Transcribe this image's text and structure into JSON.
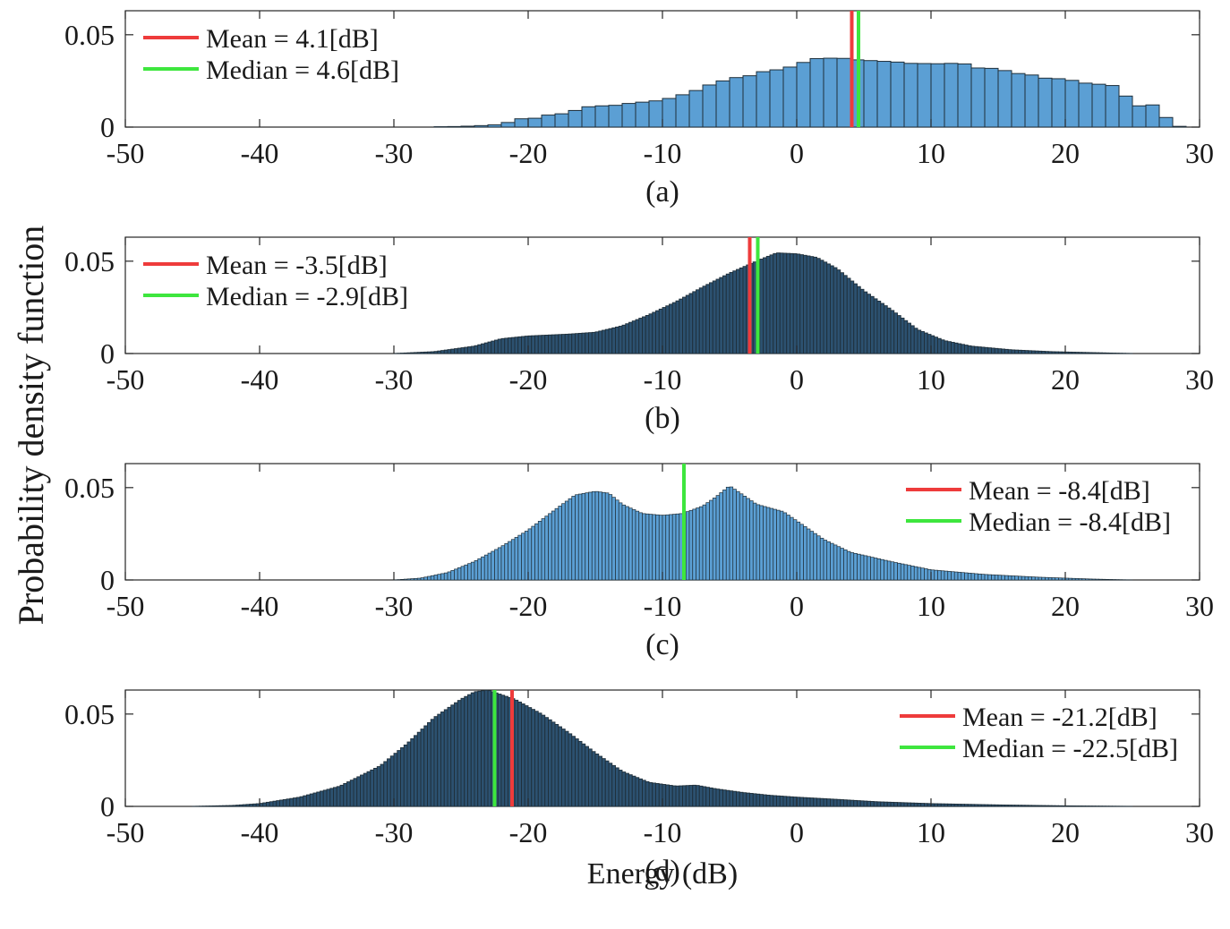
{
  "figure": {
    "ylabel": "Probability density function",
    "xlabel": "Energy (dB)",
    "colors": {
      "bar_fill": "#5b9fd4",
      "bar_edge": "#1f2f3a",
      "mean": "#ee3b3b",
      "median": "#3ee63e"
    }
  },
  "chart_data": [
    {
      "type": "bar",
      "panel_label": "(a)",
      "xlim": [
        -50,
        30
      ],
      "ylim": [
        0,
        0.063
      ],
      "xticks": [
        -50,
        -40,
        -30,
        -20,
        -10,
        0,
        10,
        20,
        30
      ],
      "yticks": [
        0,
        0.05
      ],
      "ytick_labels": [
        "0",
        "0.05"
      ],
      "legend_position": "top-left",
      "bin_width": 1,
      "bin_start": -27,
      "values": [
        0.0002,
        0.0003,
        0.0005,
        0.0008,
        0.0012,
        0.0025,
        0.0045,
        0.0048,
        0.0065,
        0.0072,
        0.009,
        0.011,
        0.0115,
        0.0118,
        0.0128,
        0.0135,
        0.0142,
        0.0155,
        0.0175,
        0.0198,
        0.0228,
        0.025,
        0.0268,
        0.0278,
        0.03,
        0.031,
        0.0325,
        0.035,
        0.0371,
        0.0373,
        0.0372,
        0.0364,
        0.036,
        0.0356,
        0.0352,
        0.0345,
        0.0344,
        0.0343,
        0.0345,
        0.0342,
        0.032,
        0.0318,
        0.0306,
        0.029,
        0.0282,
        0.0265,
        0.0262,
        0.0253,
        0.0238,
        0.0232,
        0.0225,
        0.0168,
        0.0115,
        0.012,
        0.0052,
        0.0004
      ],
      "mean": {
        "value": 4.1,
        "label": "Mean = 4.1[dB]"
      },
      "median": {
        "value": 4.6,
        "label": "Median = 4.6[dB]"
      }
    },
    {
      "type": "bar",
      "panel_label": "(b)",
      "xlim": [
        -50,
        30
      ],
      "ylim": [
        0,
        0.063
      ],
      "xticks": [
        -50,
        -40,
        -30,
        -20,
        -10,
        0,
        10,
        20,
        30
      ],
      "yticks": [
        0,
        0.05
      ],
      "ytick_labels": [
        "0",
        "0.05"
      ],
      "legend_position": "top-left",
      "x": [
        -30,
        -27,
        -24,
        -22,
        -20,
        -17,
        -15,
        -13,
        -11,
        -9,
        -7,
        -5,
        -3,
        -1.5,
        0,
        1.5,
        3,
        5,
        7,
        9,
        11,
        13,
        16,
        19,
        22,
        25
      ],
      "y": [
        0,
        0.001,
        0.004,
        0.008,
        0.0095,
        0.0105,
        0.0115,
        0.015,
        0.021,
        0.028,
        0.036,
        0.0435,
        0.05,
        0.0545,
        0.054,
        0.052,
        0.046,
        0.034,
        0.024,
        0.013,
        0.007,
        0.004,
        0.002,
        0.001,
        0.0005,
        0
      ],
      "mean": {
        "value": -3.5,
        "label": "Mean = -3.5[dB]"
      },
      "median": {
        "value": -2.9,
        "label": "Median = -2.9[dB]"
      }
    },
    {
      "type": "bar",
      "panel_label": "(c)",
      "xlim": [
        -50,
        30
      ],
      "ylim": [
        0,
        0.063
      ],
      "xticks": [
        -50,
        -40,
        -30,
        -20,
        -10,
        0,
        10,
        20,
        30
      ],
      "yticks": [
        0,
        0.05
      ],
      "ytick_labels": [
        "0",
        "0.05"
      ],
      "legend_position": "top-right",
      "x": [
        -30,
        -28,
        -26,
        -24,
        -22,
        -20,
        -18,
        -16.5,
        -15,
        -14,
        -13,
        -11.5,
        -10,
        -8.5,
        -7,
        -6,
        -5,
        -4,
        -3,
        -1,
        0,
        2,
        4,
        7,
        10,
        14,
        18,
        22,
        25
      ],
      "y": [
        0,
        0.001,
        0.004,
        0.01,
        0.018,
        0.027,
        0.038,
        0.046,
        0.048,
        0.047,
        0.041,
        0.036,
        0.035,
        0.036,
        0.04,
        0.045,
        0.051,
        0.046,
        0.041,
        0.037,
        0.032,
        0.022,
        0.015,
        0.01,
        0.0055,
        0.003,
        0.0015,
        0.0005,
        0
      ],
      "mean": {
        "value": -8.4,
        "label": "Mean = -8.4[dB]"
      },
      "median": {
        "value": -8.4,
        "label": "Median = -8.4[dB]"
      }
    },
    {
      "type": "bar",
      "panel_label": "(d)",
      "xlim": [
        -50,
        30
      ],
      "ylim": [
        0,
        0.063
      ],
      "xticks": [
        -50,
        -40,
        -30,
        -20,
        -10,
        0,
        10,
        20,
        30
      ],
      "yticks": [
        0,
        0.05
      ],
      "ytick_labels": [
        "0",
        "0.05"
      ],
      "legend_position": "top-right",
      "x": [
        -45,
        -42,
        -40,
        -37,
        -34,
        -31,
        -29,
        -27,
        -25,
        -24,
        -23,
        -21,
        -19,
        -17,
        -15,
        -13,
        -11,
        -9,
        -7.5,
        -6,
        -4,
        -2,
        0,
        3,
        6,
        10,
        15,
        20,
        25
      ],
      "y": [
        0,
        0.0005,
        0.0015,
        0.005,
        0.011,
        0.022,
        0.034,
        0.048,
        0.058,
        0.062,
        0.063,
        0.058,
        0.05,
        0.04,
        0.029,
        0.019,
        0.013,
        0.011,
        0.0115,
        0.0095,
        0.0075,
        0.006,
        0.005,
        0.0038,
        0.0025,
        0.0015,
        0.0008,
        0.0003,
        0
      ],
      "mean": {
        "value": -21.2,
        "label": "Mean = -21.2[dB]"
      },
      "median": {
        "value": -22.5,
        "label": "Median = -22.5[dB]"
      }
    }
  ]
}
